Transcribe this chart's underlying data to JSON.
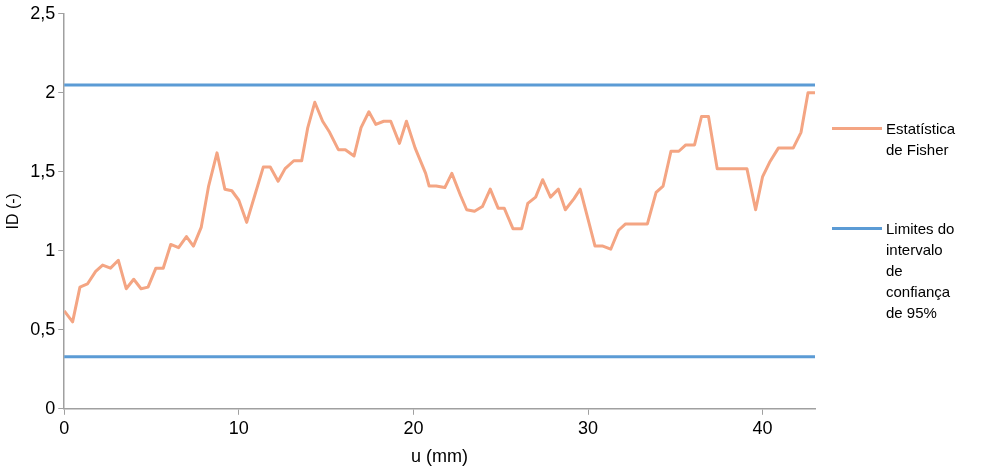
{
  "chart_data": {
    "type": "line",
    "xlabel": "u (mm)",
    "ylabel": "ID (-)",
    "x": [
      0,
      0.48,
      0.9,
      1.33,
      1.8,
      2.2,
      2.65,
      3.1,
      3.55,
      3.98,
      4.4,
      4.8,
      5.25,
      5.67,
      6.1,
      6.55,
      7.0,
      7.4,
      7.85,
      8.27,
      8.75,
      9.2,
      9.6,
      10.0,
      10.45,
      11.4,
      11.8,
      12.25,
      12.65,
      13.15,
      13.6,
      13.95,
      14.35,
      14.8,
      15.2,
      15.7,
      16.1,
      16.6,
      17.0,
      17.45,
      17.85,
      18.3,
      18.7,
      19.2,
      19.6,
      20.1,
      20.7,
      20.9,
      21.3,
      21.8,
      22.2,
      22.7,
      23.05,
      23.5,
      23.95,
      24.4,
      24.85,
      25.2,
      25.7,
      26.2,
      26.55,
      27.0,
      27.4,
      27.85,
      28.3,
      28.7,
      29.2,
      29.55,
      30.0,
      30.4,
      30.85,
      31.3,
      31.75,
      32.15,
      32.6,
      33.4,
      33.9,
      34.3,
      34.75,
      35.2,
      35.6,
      36.1,
      36.5,
      36.9,
      37.4,
      39.1,
      39.6,
      40.0,
      40.4,
      40.9,
      41.75,
      42.2,
      42.6,
      43.0
    ],
    "series": [
      {
        "name": "Estatística de Fisher",
        "color": "#f4a583",
        "values": [
          0.62,
          0.55,
          0.77,
          0.79,
          0.87,
          0.91,
          0.89,
          0.94,
          0.76,
          0.82,
          0.76,
          0.77,
          0.89,
          0.89,
          1.04,
          1.02,
          1.09,
          1.03,
          1.15,
          1.41,
          1.62,
          1.39,
          1.38,
          1.32,
          1.18,
          1.53,
          1.53,
          1.44,
          1.52,
          1.57,
          1.57,
          1.78,
          1.94,
          1.82,
          1.75,
          1.64,
          1.64,
          1.6,
          1.78,
          1.88,
          1.8,
          1.82,
          1.82,
          1.68,
          1.82,
          1.65,
          1.49,
          1.41,
          1.41,
          1.4,
          1.49,
          1.35,
          1.26,
          1.25,
          1.28,
          1.39,
          1.27,
          1.27,
          1.14,
          1.14,
          1.3,
          1.34,
          1.45,
          1.34,
          1.39,
          1.26,
          1.33,
          1.39,
          1.2,
          1.03,
          1.03,
          1.01,
          1.13,
          1.17,
          1.17,
          1.17,
          1.37,
          1.41,
          1.63,
          1.63,
          1.67,
          1.67,
          1.85,
          1.85,
          1.52,
          1.52,
          1.26,
          1.47,
          1.56,
          1.65,
          1.65,
          1.75,
          2.0,
          2.0
        ]
      }
    ],
    "ref_lines": [
      {
        "axis": "y",
        "value": 2.05,
        "label": "Limites do intervalo de confiança de 95%",
        "color": "#5b9bd5"
      },
      {
        "axis": "y",
        "value": 0.33,
        "color": "#5b9bd5"
      }
    ],
    "xlim": [
      0,
      43
    ],
    "xticks": [
      0,
      10,
      20,
      30,
      40
    ],
    "ylim": [
      0,
      2.5
    ],
    "yticks": [
      {
        "value": 0,
        "label": "0"
      },
      {
        "value": 0.5,
        "label": "0,5"
      },
      {
        "value": 1,
        "label": "1"
      },
      {
        "value": 1.5,
        "label": "1,5"
      },
      {
        "value": 2,
        "label": "2"
      },
      {
        "value": 2.5,
        "label": "2,5"
      }
    ],
    "grid": false,
    "legend": "right",
    "marker": "none",
    "line_style": "solid"
  }
}
